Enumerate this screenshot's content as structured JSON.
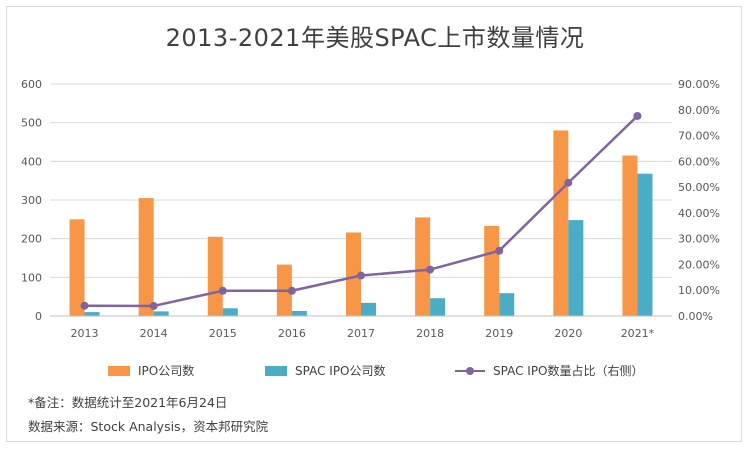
{
  "title": "2013-2021年美股SPAC上市数量情况",
  "notes": {
    "note1": "*备注：数据统计至2021年6月24日",
    "note2": "数据来源：Stock Analysis，资本邦研究院"
  },
  "colors": {
    "ipo": "#f79646",
    "spac": "#4bacc6",
    "ratio": "#8064a2",
    "grid": "#d9d9d9"
  },
  "chart_data": {
    "type": "bar",
    "categories": [
      "2013",
      "2014",
      "2015",
      "2016",
      "2017",
      "2018",
      "2019",
      "2020",
      "2021*"
    ],
    "series": [
      {
        "name": "IPO公司数",
        "type": "bar",
        "axis": "left",
        "values": [
          250,
          305,
          205,
          133,
          216,
          255,
          233,
          480,
          415
        ]
      },
      {
        "name": "SPAC IPO公司数",
        "type": "bar",
        "axis": "left",
        "values": [
          10,
          12,
          20,
          13,
          34,
          46,
          59,
          248,
          368
        ]
      },
      {
        "name": "SPAC IPO数量占比（右侧）",
        "type": "line",
        "axis": "right",
        "values": [
          4.0,
          3.9,
          9.8,
          9.8,
          15.7,
          18.0,
          25.3,
          51.7,
          77.6
        ]
      }
    ],
    "yleft": {
      "ylim": [
        0,
        600
      ],
      "ticks": [
        "0",
        "100",
        "200",
        "300",
        "400",
        "500",
        "600"
      ]
    },
    "yright": {
      "ylim": [
        0,
        90
      ],
      "ticks": [
        "0.00%",
        "10.00%",
        "20.00%",
        "30.00%",
        "40.00%",
        "50.00%",
        "60.00%",
        "70.00%",
        "80.00%",
        "90.00%"
      ]
    },
    "legend_position": "bottom",
    "grid": true
  }
}
